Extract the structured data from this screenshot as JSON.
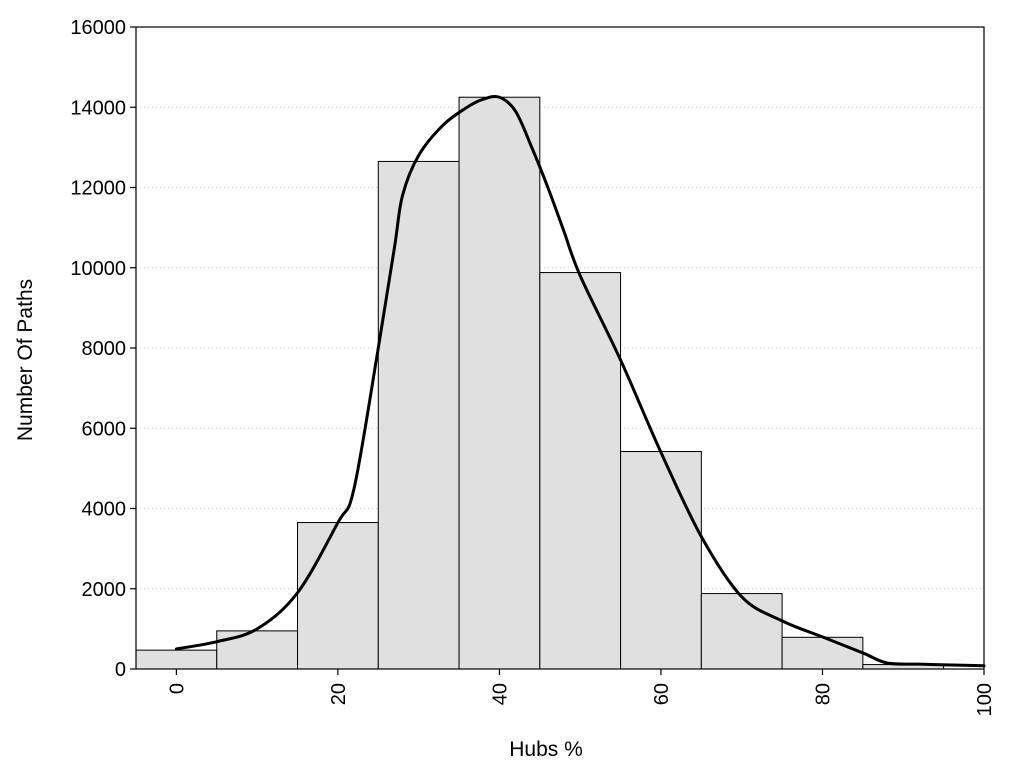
{
  "chart_data": {
    "type": "bar",
    "title": "",
    "xlabel": "Hubs %",
    "ylabel": "Number Of Paths",
    "xlim": [
      -5,
      100
    ],
    "ylim": [
      0,
      16000
    ],
    "x_ticks": [
      0,
      20,
      40,
      60,
      80,
      100
    ],
    "y_ticks": [
      0,
      2000,
      4000,
      6000,
      8000,
      10000,
      12000,
      14000,
      16000
    ],
    "bin_width": 10,
    "grid": "horizontal dotted",
    "series": [
      {
        "type": "histogram",
        "x": [
          0,
          10,
          20,
          30,
          40,
          50,
          60,
          70,
          80,
          90
        ],
        "values": [
          470,
          950,
          3650,
          12650,
          14250,
          9880,
          5420,
          1880,
          790,
          110
        ]
      },
      {
        "type": "line",
        "x": [
          0,
          5,
          10,
          15,
          20,
          22,
          25,
          27,
          28,
          30,
          33,
          36,
          38,
          40,
          42,
          44,
          46,
          48,
          50,
          55,
          60,
          65,
          70,
          75,
          80,
          85,
          88,
          92,
          96,
          100
        ],
        "values": [
          500,
          680,
          1000,
          1900,
          3650,
          4500,
          8000,
          10500,
          11800,
          12800,
          13550,
          14000,
          14200,
          14250,
          13900,
          13000,
          12000,
          10900,
          9800,
          7700,
          5400,
          3300,
          1800,
          1200,
          800,
          400,
          150,
          120,
          100,
          80
        ]
      }
    ],
    "colors": {
      "bar_fill": "#e0e0e0",
      "bar_stroke": "#000000",
      "line": "#000000",
      "grid": "#cccccc"
    }
  }
}
